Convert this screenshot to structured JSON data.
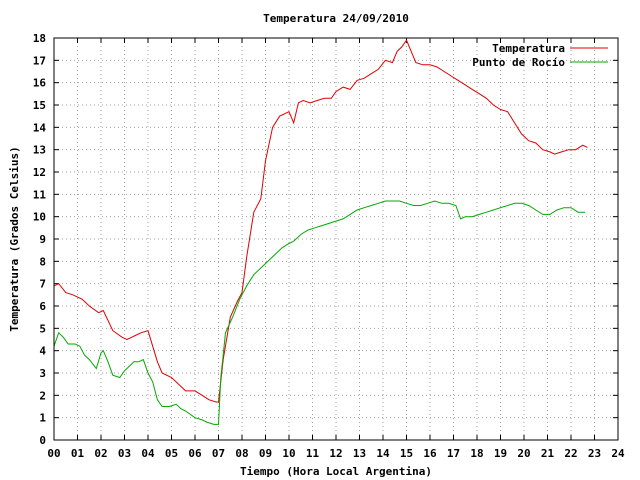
{
  "chart_data": {
    "type": "line",
    "title": "Temperatura 24/09/2010",
    "xlabel": "Tiempo (Hora Local Argentina)",
    "ylabel": "Temperatura (Grados Celsius)",
    "xlim": [
      0,
      24
    ],
    "ylim": [
      0,
      18
    ],
    "grid": true,
    "legend_position": "top-right",
    "x_ticks": [
      "00",
      "01",
      "02",
      "03",
      "04",
      "05",
      "06",
      "07",
      "08",
      "09",
      "10",
      "11",
      "12",
      "13",
      "14",
      "15",
      "16",
      "17",
      "18",
      "19",
      "20",
      "21",
      "22",
      "23",
      "24"
    ],
    "y_ticks": [
      "0",
      "1",
      "2",
      "3",
      "4",
      "5",
      "6",
      "7",
      "8",
      "9",
      "10",
      "11",
      "12",
      "13",
      "14",
      "15",
      "16",
      "17",
      "18"
    ],
    "series": [
      {
        "name": "Temperatura",
        "color": "#e00000",
        "x": [
          0.0,
          0.2,
          0.5,
          0.8,
          1.2,
          1.5,
          1.9,
          2.1,
          2.5,
          2.9,
          3.1,
          3.3,
          3.5,
          3.7,
          4.0,
          4.2,
          4.4,
          4.6,
          5.0,
          5.3,
          5.6,
          6.0,
          6.3,
          6.6,
          6.9,
          7.0,
          7.2,
          7.5,
          7.8,
          8.0,
          8.2,
          8.5,
          8.8,
          9.0,
          9.3,
          9.6,
          10.0,
          10.2,
          10.4,
          10.6,
          10.9,
          11.2,
          11.5,
          11.8,
          12.0,
          12.3,
          12.6,
          12.9,
          13.2,
          13.5,
          13.8,
          14.1,
          14.4,
          14.6,
          14.8,
          15.0,
          15.2,
          15.4,
          15.7,
          16.0,
          16.3,
          16.6,
          16.9,
          17.2,
          17.5,
          17.8,
          18.1,
          18.4,
          18.7,
          19.0,
          19.3,
          19.6,
          19.9,
          20.2,
          20.5,
          20.8,
          21.1,
          21.3,
          21.6,
          21.9,
          22.2,
          22.5,
          22.7
        ],
        "y": [
          6.9,
          7.0,
          6.6,
          6.5,
          6.3,
          6.0,
          5.7,
          5.8,
          4.9,
          4.6,
          4.5,
          4.6,
          4.7,
          4.8,
          4.9,
          4.2,
          3.5,
          3.0,
          2.8,
          2.5,
          2.2,
          2.2,
          2.0,
          1.8,
          1.7,
          1.7,
          3.6,
          5.5,
          6.2,
          6.6,
          8.2,
          10.2,
          10.8,
          12.5,
          14.0,
          14.5,
          14.7,
          14.2,
          15.1,
          15.2,
          15.1,
          15.2,
          15.3,
          15.3,
          15.6,
          15.8,
          15.7,
          16.1,
          16.2,
          16.4,
          16.6,
          17.0,
          16.9,
          17.4,
          17.6,
          17.9,
          17.4,
          16.9,
          16.8,
          16.8,
          16.7,
          16.5,
          16.3,
          16.1,
          15.9,
          15.7,
          15.5,
          15.3,
          15.0,
          14.8,
          14.7,
          14.2,
          13.7,
          13.4,
          13.3,
          13.0,
          12.9,
          12.8,
          12.9,
          13.0,
          13.0,
          13.2,
          13.1
        ]
      },
      {
        "name": "Punto de Rocío",
        "color": "#00aa00",
        "x": [
          0.0,
          0.2,
          0.4,
          0.6,
          0.9,
          1.1,
          1.3,
          1.5,
          1.8,
          2.0,
          2.1,
          2.3,
          2.5,
          2.8,
          3.0,
          3.2,
          3.4,
          3.6,
          3.8,
          4.0,
          4.2,
          4.4,
          4.6,
          4.9,
          5.2,
          5.4,
          5.6,
          6.0,
          6.3,
          6.5,
          6.8,
          7.0,
          7.1,
          7.3,
          7.6,
          7.9,
          8.2,
          8.5,
          8.8,
          9.1,
          9.4,
          9.7,
          10.0,
          10.2,
          10.5,
          10.8,
          11.1,
          11.4,
          11.7,
          12.0,
          12.3,
          12.6,
          12.9,
          13.2,
          13.5,
          13.8,
          14.1,
          14.4,
          14.7,
          15.0,
          15.3,
          15.6,
          15.9,
          16.2,
          16.5,
          16.8,
          17.1,
          17.3,
          17.5,
          17.8,
          18.1,
          18.4,
          18.7,
          19.0,
          19.3,
          19.6,
          19.9,
          20.2,
          20.5,
          20.8,
          21.1,
          21.4,
          21.7,
          22.0,
          22.3,
          22.6
        ],
        "y": [
          4.2,
          4.8,
          4.6,
          4.3,
          4.3,
          4.2,
          3.8,
          3.6,
          3.2,
          3.9,
          4.0,
          3.5,
          2.9,
          2.8,
          3.1,
          3.3,
          3.5,
          3.5,
          3.6,
          3.0,
          2.6,
          1.8,
          1.5,
          1.5,
          1.6,
          1.4,
          1.3,
          1.0,
          0.9,
          0.8,
          0.7,
          0.7,
          2.8,
          4.8,
          5.5,
          6.3,
          6.9,
          7.4,
          7.7,
          8.0,
          8.3,
          8.6,
          8.8,
          8.9,
          9.2,
          9.4,
          9.5,
          9.6,
          9.7,
          9.8,
          9.9,
          10.1,
          10.3,
          10.4,
          10.5,
          10.6,
          10.7,
          10.7,
          10.7,
          10.6,
          10.5,
          10.5,
          10.6,
          10.7,
          10.6,
          10.6,
          10.5,
          9.9,
          10.0,
          10.0,
          10.1,
          10.2,
          10.3,
          10.4,
          10.5,
          10.6,
          10.6,
          10.5,
          10.3,
          10.1,
          10.1,
          10.3,
          10.4,
          10.4,
          10.2,
          10.2
        ]
      }
    ]
  }
}
